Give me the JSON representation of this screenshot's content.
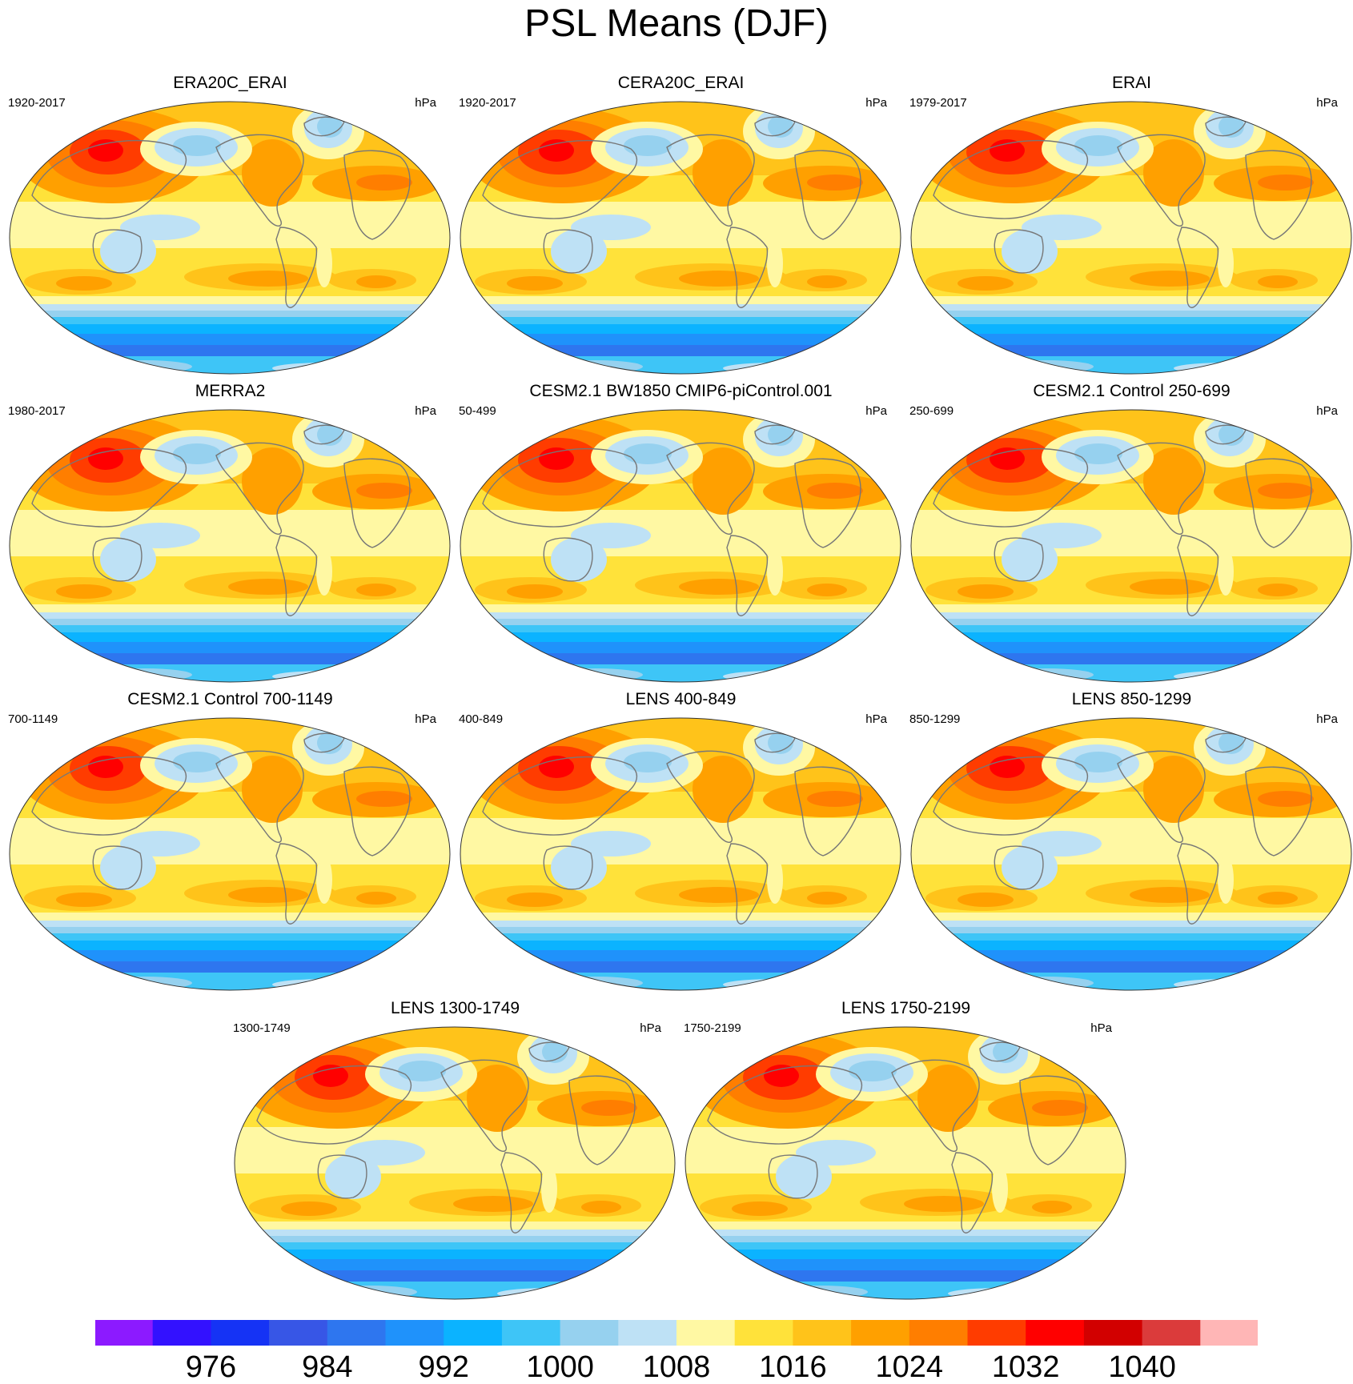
{
  "figure": {
    "title": "PSL Means (DJF)"
  },
  "colors": {
    "palette": [
      "#8c1aff",
      "#3311ff",
      "#1533f5",
      "#3756e6",
      "#2e76ef",
      "#1f92fb",
      "#0bb3ff",
      "#3ec5f7",
      "#96d1ef",
      "#bee1f5",
      "#fff8a3",
      "#ffe23a",
      "#ffc31a",
      "#ffa000",
      "#ff7e00",
      "#ff3c00",
      "#ff0000",
      "#d20000",
      "#db3b3b",
      "#ffb6b6"
    ],
    "coastline": "#777777",
    "outline": "#333333"
  },
  "chart_data": {
    "type": "heatmap",
    "title": "PSL Means (DJF)",
    "variable": "PSL",
    "season": "DJF",
    "units": "hPa",
    "colorbar": {
      "levels": [
        972,
        976,
        980,
        984,
        988,
        992,
        996,
        1000,
        1004,
        1008,
        1012,
        1016,
        1020,
        1024,
        1028,
        1032,
        1036,
        1040,
        1044
      ],
      "labels": [
        "976",
        "984",
        "992",
        "1000",
        "1008",
        "1016",
        "1024",
        "1032",
        "1040"
      ],
      "label_values": [
        976,
        984,
        992,
        1000,
        1008,
        1016,
        1024,
        1032,
        1040
      ]
    },
    "panels": [
      {
        "title": "ERA20C_ERAI",
        "years": "1920-2017",
        "units": "hPa"
      },
      {
        "title": "CERA20C_ERAI",
        "years": "1920-2017",
        "units": "hPa"
      },
      {
        "title": "ERAI",
        "years": "1979-2017",
        "units": "hPa"
      },
      {
        "title": "MERRA2",
        "years": "1980-2017",
        "units": "hPa"
      },
      {
        "title": "CESM2.1 BW1850 CMIP6-piControl.001",
        "years": "50-499",
        "units": "hPa"
      },
      {
        "title": "CESM2.1 Control 250-699",
        "years": "250-699",
        "units": "hPa"
      },
      {
        "title": "CESM2.1 Control 700-1149",
        "years": "700-1149",
        "units": "hPa"
      },
      {
        "title": "LENS 400-849",
        "years": "400-849",
        "units": "hPa"
      },
      {
        "title": "LENS 850-1299",
        "years": "850-1299",
        "units": "hPa"
      },
      {
        "title": "LENS 1300-1749",
        "years": "1300-1749",
        "units": "hPa"
      },
      {
        "title": "LENS 1750-2199",
        "years": "1750-2199",
        "units": "hPa"
      }
    ]
  }
}
